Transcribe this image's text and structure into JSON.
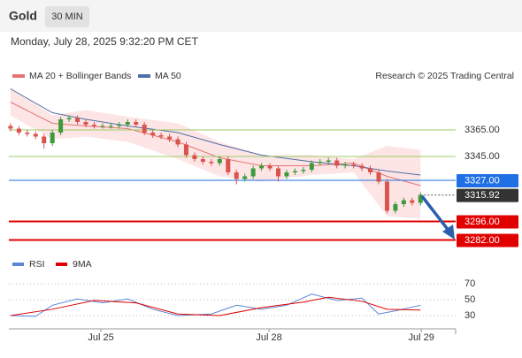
{
  "chart_data": {
    "type": "candlestick",
    "symbol": "Gold",
    "timeframe": "30 MIN",
    "subtitle": "Monday, July 28, 2025 9:32:20 PM CET",
    "source": "Research © 2025 Trading Central",
    "up_color": "#3d9a3d",
    "down_color": "#d9534f",
    "xlim": [
      -0.2,
      53.2
    ],
    "ylim": [
      3275,
      3403
    ],
    "xticks": [
      {
        "value": 10.8,
        "label": "Jul 25"
      },
      {
        "value": 30.9,
        "label": "Jul 28"
      },
      {
        "value": 49.1,
        "label": "Jul 29"
      }
    ],
    "open": [
      3368,
      3366,
      3363,
      3362,
      3360,
      3355,
      3363,
      3373,
      3374,
      3371,
      3369,
      3368,
      3368,
      3368,
      3369,
      3371,
      3369,
      3363,
      3361,
      3360,
      3358,
      3354,
      3346,
      3343,
      3341,
      3340,
      3343,
      3333,
      3328,
      3330,
      3336,
      3338,
      3336,
      3330,
      3333,
      3334,
      3335,
      3340,
      3341,
      3342,
      3338,
      3339,
      3338,
      3336,
      3333,
      3326,
      3304,
      3309,
      3312,
      3310
    ],
    "high": [
      3370,
      3368,
      3365,
      3364,
      3362,
      3365,
      3375,
      3376,
      3376,
      3373,
      3371,
      3370,
      3370,
      3371,
      3373,
      3373,
      3371,
      3365,
      3363,
      3362,
      3360,
      3356,
      3348,
      3345,
      3343,
      3345,
      3345,
      3335,
      3332,
      3338,
      3340,
      3340,
      3338,
      3335,
      3336,
      3337,
      3342,
      3343,
      3344,
      3344,
      3341,
      3341,
      3340,
      3338,
      3335,
      3328,
      3311,
      3314,
      3314,
      3318
    ],
    "low": [
      3364,
      3361,
      3360,
      3358,
      3351,
      3353,
      3361,
      3371,
      3369,
      3367,
      3366,
      3366,
      3366,
      3366,
      3367,
      3367,
      3361,
      3359,
      3358,
      3356,
      3352,
      3344,
      3341,
      3339,
      3338,
      3338,
      3331,
      3324,
      3326,
      3328,
      3334,
      3334,
      3326,
      3328,
      3331,
      3332,
      3333,
      3338,
      3339,
      3336,
      3336,
      3336,
      3334,
      3331,
      3324,
      3302,
      3302,
      3307,
      3308,
      3308
    ],
    "close": [
      3366,
      3363,
      3362,
      3360,
      3355,
      3363,
      3373,
      3374,
      3371,
      3369,
      3368,
      3368,
      3368,
      3369,
      3371,
      3369,
      3363,
      3361,
      3360,
      3358,
      3354,
      3346,
      3343,
      3341,
      3340,
      3343,
      3333,
      3328,
      3330,
      3336,
      3338,
      3336,
      3330,
      3333,
      3334,
      3335,
      3340,
      3341,
      3342,
      3338,
      3339,
      3338,
      3336,
      3333,
      3326,
      3304,
      3309,
      3312,
      3310,
      3315.92
    ],
    "overlays": [
      {
        "name": "MA 20 + Bollinger Bands",
        "color": "#e57373",
        "band_color": "#fbd3d3",
        "x": [
          0,
          5,
          9,
          14,
          20,
          25,
          30,
          36,
          41,
          45,
          49
        ],
        "values": [
          3386,
          3370,
          3368,
          3366,
          3356,
          3344,
          3338,
          3338,
          3340,
          3330,
          3323
        ],
        "upper": [
          3397,
          3376,
          3380,
          3375,
          3370,
          3356,
          3346,
          3346,
          3343,
          3353,
          3350
        ],
        "lower": [
          3376,
          3358,
          3360,
          3356,
          3343,
          3330,
          3326,
          3331,
          3333,
          3300,
          3298
        ]
      },
      {
        "name": "MA 50",
        "color": "#4f6fa8",
        "x": [
          0,
          5,
          9,
          14,
          20,
          25,
          30,
          36,
          41,
          45,
          49
        ],
        "values": [
          3396,
          3378,
          3373,
          3368,
          3363,
          3354,
          3346,
          3341,
          3338,
          3334,
          3331
        ]
      }
    ],
    "levels": [
      {
        "value": 3365,
        "label": "3365.00",
        "color": "#9ccc65",
        "style": "thin"
      },
      {
        "value": 3345,
        "label": "3345.00",
        "color": "#9ccc65",
        "style": "thin"
      },
      {
        "value": 3327,
        "label": "3327.00",
        "color": "#1f6fe5",
        "style": "box"
      },
      {
        "value": 3315.92,
        "label": "3315.92",
        "color": "#333333",
        "style": "dotted"
      },
      {
        "value": 3296,
        "label": "3296.00",
        "color": "#e00000",
        "style": "thick"
      },
      {
        "value": 3282,
        "label": "3282.00",
        "color": "#e00000",
        "style": "thick"
      }
    ],
    "rsi": {
      "ylim": [
        15.6,
        82.2
      ],
      "yticks": [
        70,
        50,
        30
      ],
      "series": [
        {
          "name": "RSI",
          "color": "#5b86d6",
          "x": [
            0,
            3,
            5,
            8,
            11,
            14,
            17,
            20,
            24,
            27,
            30,
            33,
            36,
            39,
            42,
            44,
            46,
            49
          ],
          "values": [
            30,
            29,
            43,
            51,
            46,
            51,
            38,
            30,
            32,
            43,
            38,
            43,
            57,
            49,
            52,
            32,
            36,
            43
          ]
        },
        {
          "name": "9MA",
          "color": "#e00000",
          "x": [
            0,
            5,
            10,
            15,
            20,
            25,
            30,
            35,
            38,
            42,
            45,
            49
          ],
          "values": [
            30,
            38,
            49,
            46,
            32,
            30,
            40,
            47,
            53,
            48,
            38,
            37
          ]
        }
      ]
    }
  }
}
